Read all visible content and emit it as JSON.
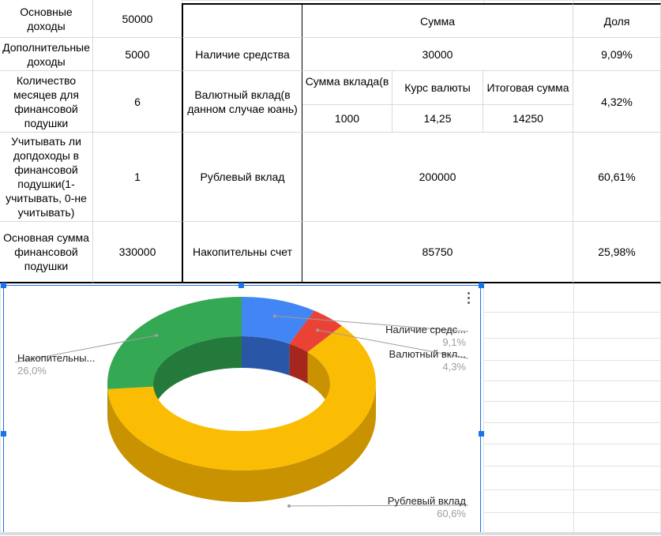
{
  "params": [
    {
      "label": "Основные доходы",
      "value": "50000"
    },
    {
      "label": "Дополнительные доходы",
      "value": "5000"
    },
    {
      "label": "Количество месяцев для финансовой подушки",
      "value": "6"
    },
    {
      "label": "Учитывать ли допдоходы в финансовой подушки(1-учитывать, 0-не учитывать)",
      "value": "1"
    },
    {
      "label": "Основная сумма финансовой подушки",
      "value": "330000"
    }
  ],
  "alloc": {
    "header_sum": "Сумма",
    "header_share": "Доля",
    "rows": [
      {
        "name": "Наличие средства",
        "sum": "30000",
        "share": "9,09%"
      },
      {
        "name": "Валютный вклад(в данном случае юань)",
        "share": "4,32%",
        "sub_headers": [
          "Сумма вклада(в",
          "Курс валюты",
          "Итоговая сумма"
        ],
        "sub_values": [
          "1000",
          "14,25",
          "14250"
        ]
      },
      {
        "name": "Рублевый вклад",
        "sum": "200000",
        "share": "60,61%"
      },
      {
        "name": "Накопительны счет",
        "sum": "85750",
        "share": "25,98%"
      }
    ]
  },
  "chart_data": {
    "type": "pie",
    "style": "3d-donut",
    "slices": [
      {
        "label": "Наличие средс...",
        "full_label": "Наличие средства",
        "value": 9.1,
        "pct_label": "9,1%",
        "color": "#4285f4",
        "side_color": "#2a56a8"
      },
      {
        "label": "Валютный вкл...",
        "full_label": "Валютный вклад",
        "value": 4.3,
        "pct_label": "4,3%",
        "color": "#ea4335",
        "side_color": "#a5261c"
      },
      {
        "label": "Рублевый вклад",
        "full_label": "Рублевый вклад",
        "value": 60.6,
        "pct_label": "60,6%",
        "color": "#fbbc04",
        "side_color": "#c89200"
      },
      {
        "label": "Накопительны...",
        "full_label": "Накопительны счет",
        "value": 26.0,
        "pct_label": "26,0%",
        "color": "#34a853",
        "side_color": "#247a3a"
      }
    ]
  }
}
